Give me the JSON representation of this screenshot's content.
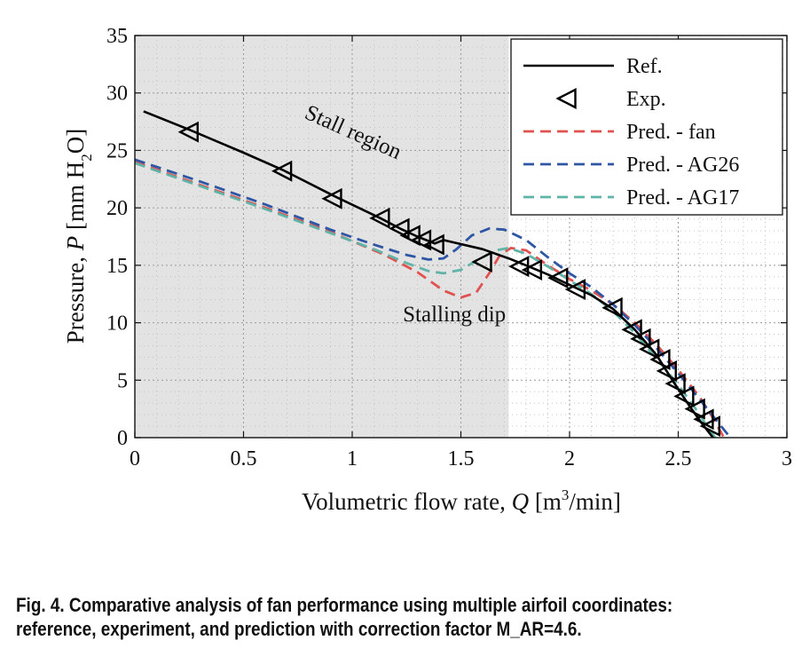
{
  "chart_data": {
    "type": "line",
    "xlabel": "Volumetric flow rate, Q [m³/min]",
    "ylabel": "Pressure, P  [mm H₂O]",
    "xlim": [
      0,
      3
    ],
    "ylim": [
      0,
      35
    ],
    "xticks": [
      "0",
      "0.5",
      "1",
      "1.5",
      "2",
      "2.5",
      "3"
    ],
    "yticks": [
      "0",
      "5",
      "10",
      "15",
      "20",
      "25",
      "30",
      "35"
    ],
    "grid": "dotted, minor and major",
    "shaded_region": {
      "x_range": [
        0,
        1.72
      ],
      "label": "Stall region"
    },
    "legend_position": "top-right",
    "annotations": [
      {
        "text": "Stall region",
        "x": 1.0,
        "y": 26.8
      },
      {
        "text": "Stalling dip",
        "x": 1.47,
        "y": 10.8
      }
    ],
    "series": [
      {
        "name": "Ref.",
        "style": "solid",
        "color": "#000000",
        "points": [
          [
            0.04,
            28.4
          ],
          [
            0.25,
            26.8
          ],
          [
            0.5,
            24.8
          ],
          [
            0.68,
            23.3
          ],
          [
            0.92,
            21.0
          ],
          [
            1.13,
            19.1
          ],
          [
            1.22,
            18.2
          ],
          [
            1.3,
            17.5
          ],
          [
            1.38,
            16.9
          ],
          [
            1.42,
            17.2
          ],
          [
            1.6,
            16.4
          ],
          [
            1.72,
            15.6
          ],
          [
            1.8,
            15.0
          ],
          [
            1.9,
            14.2
          ],
          [
            2.0,
            13.3
          ],
          [
            2.1,
            12.4
          ],
          [
            2.2,
            11.2
          ],
          [
            2.3,
            9.4
          ],
          [
            2.4,
            7.2
          ],
          [
            2.48,
            4.8
          ],
          [
            2.55,
            2.8
          ],
          [
            2.61,
            1.2
          ],
          [
            2.66,
            0.0
          ]
        ]
      },
      {
        "name": "Exp.",
        "style": "markers",
        "color": "#000000",
        "points": [
          [
            0.25,
            26.6
          ],
          [
            0.68,
            23.2
          ],
          [
            0.91,
            20.8
          ],
          [
            1.13,
            19.1
          ],
          [
            1.22,
            18.2
          ],
          [
            1.27,
            17.6
          ],
          [
            1.32,
            17.2
          ],
          [
            1.38,
            16.8
          ],
          [
            1.6,
            15.3
          ],
          [
            1.77,
            14.9
          ],
          [
            1.83,
            14.6
          ],
          [
            1.95,
            13.9
          ],
          [
            2.03,
            12.9
          ],
          [
            2.2,
            11.3
          ],
          [
            2.29,
            9.4
          ],
          [
            2.33,
            8.6
          ],
          [
            2.37,
            7.7
          ],
          [
            2.42,
            6.8
          ],
          [
            2.45,
            5.8
          ],
          [
            2.49,
            4.7
          ],
          [
            2.53,
            3.6
          ],
          [
            2.58,
            2.5
          ],
          [
            2.62,
            1.6
          ],
          [
            2.65,
            1.0
          ]
        ]
      },
      {
        "name": "Pred. - fan",
        "style": "dashed",
        "color": "#e0524f",
        "points": [
          [
            0.0,
            24.0
          ],
          [
            0.3,
            22.0
          ],
          [
            0.6,
            20.0
          ],
          [
            0.9,
            17.9
          ],
          [
            1.15,
            15.9
          ],
          [
            1.3,
            14.4
          ],
          [
            1.42,
            12.8
          ],
          [
            1.5,
            12.2
          ],
          [
            1.57,
            12.6
          ],
          [
            1.63,
            14.3
          ],
          [
            1.68,
            15.9
          ],
          [
            1.73,
            16.5
          ],
          [
            1.8,
            16.3
          ],
          [
            1.9,
            15.0
          ],
          [
            2.0,
            13.8
          ],
          [
            2.1,
            12.8
          ],
          [
            2.2,
            11.6
          ],
          [
            2.3,
            10.0
          ],
          [
            2.4,
            8.1
          ],
          [
            2.5,
            5.9
          ],
          [
            2.6,
            3.5
          ],
          [
            2.66,
            1.7
          ],
          [
            2.71,
            0.0
          ]
        ]
      },
      {
        "name": "Pred. - AG26",
        "style": "dashed",
        "color": "#2e56a4",
        "points": [
          [
            0.0,
            24.2
          ],
          [
            0.3,
            22.3
          ],
          [
            0.6,
            20.3
          ],
          [
            0.9,
            18.1
          ],
          [
            1.1,
            16.8
          ],
          [
            1.25,
            15.9
          ],
          [
            1.35,
            15.5
          ],
          [
            1.42,
            15.6
          ],
          [
            1.48,
            16.4
          ],
          [
            1.55,
            17.6
          ],
          [
            1.63,
            18.2
          ],
          [
            1.7,
            18.1
          ],
          [
            1.8,
            17.2
          ],
          [
            1.9,
            15.7
          ],
          [
            2.0,
            14.3
          ],
          [
            2.1,
            13.1
          ],
          [
            2.2,
            11.6
          ],
          [
            2.3,
            9.8
          ],
          [
            2.4,
            7.8
          ],
          [
            2.5,
            5.6
          ],
          [
            2.6,
            3.3
          ],
          [
            2.68,
            1.4
          ],
          [
            2.74,
            0.0
          ]
        ]
      },
      {
        "name": "Pred. - AG17",
        "style": "dashed",
        "color": "#5fb3a7",
        "points": [
          [
            0.0,
            23.9
          ],
          [
            0.3,
            21.9
          ],
          [
            0.6,
            19.9
          ],
          [
            0.9,
            17.8
          ],
          [
            1.1,
            16.4
          ],
          [
            1.25,
            15.2
          ],
          [
            1.35,
            14.5
          ],
          [
            1.42,
            14.3
          ],
          [
            1.5,
            14.6
          ],
          [
            1.58,
            15.5
          ],
          [
            1.66,
            16.3
          ],
          [
            1.72,
            16.5
          ],
          [
            1.8,
            16.0
          ],
          [
            1.9,
            14.9
          ],
          [
            2.0,
            13.7
          ],
          [
            2.1,
            12.5
          ],
          [
            2.2,
            11.0
          ],
          [
            2.3,
            9.1
          ],
          [
            2.4,
            6.9
          ],
          [
            2.5,
            4.6
          ],
          [
            2.58,
            2.5
          ],
          [
            2.64,
            0.8
          ],
          [
            2.67,
            0.0
          ]
        ]
      }
    ]
  },
  "caption": {
    "line1": "Fig. 4. Comparative analysis of fan performance using multiple airfoil coordinates:",
    "line2": "reference, experiment, and prediction with correction factor M_AR=4.6."
  }
}
